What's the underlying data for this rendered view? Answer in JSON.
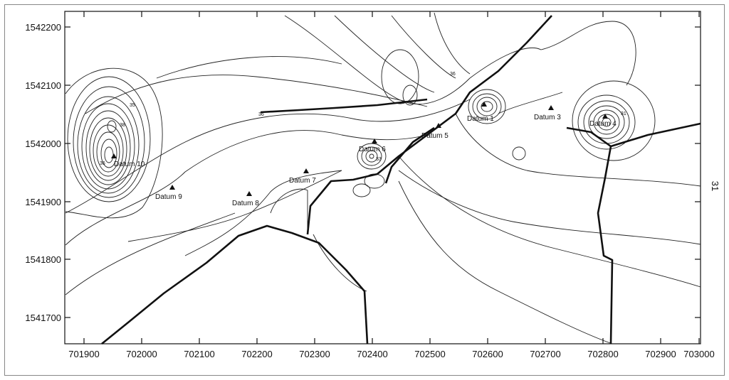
{
  "axes": {
    "x_ticks": [
      "701900",
      "702000",
      "702100",
      "702200",
      "702300",
      "702400",
      "702500",
      "702600",
      "702700",
      "702800",
      "702900",
      "703000"
    ],
    "y_ticks": [
      "1542200",
      "1542100",
      "1542000",
      "1541900",
      "1541800",
      "1541700"
    ],
    "right_side_label": "31"
  },
  "datums": [
    {
      "label": "Datum 1"
    },
    {
      "label": "Datum 3"
    },
    {
      "label": "Datum 4"
    },
    {
      "label": "Datum 5"
    },
    {
      "label": "Datum 6"
    },
    {
      "label": "Datum 7"
    },
    {
      "label": "Datum 8"
    },
    {
      "label": "Datum 9"
    },
    {
      "label": "Datum 10"
    }
  ],
  "contour_labels": [
    "36",
    "36",
    "35",
    "38",
    "31",
    "36",
    "33"
  ],
  "colors": {
    "line": "#222222",
    "road": "#111111",
    "background": "#ffffff"
  }
}
